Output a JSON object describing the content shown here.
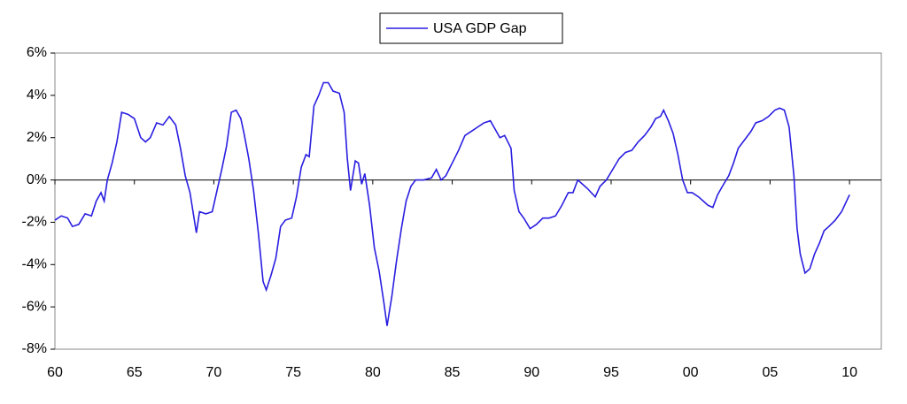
{
  "chart_data": {
    "type": "line",
    "legend_position": "top",
    "xlim": [
      1960,
      2012
    ],
    "ylim": [
      -8,
      6
    ],
    "xticks": [
      {
        "value": 1960,
        "label": "60"
      },
      {
        "value": 1965,
        "label": "65"
      },
      {
        "value": 1970,
        "label": "70"
      },
      {
        "value": 1975,
        "label": "75"
      },
      {
        "value": 1980,
        "label": "80"
      },
      {
        "value": 1985,
        "label": "85"
      },
      {
        "value": 1990,
        "label": "90"
      },
      {
        "value": 1995,
        "label": "95"
      },
      {
        "value": 2000,
        "label": "00"
      },
      {
        "value": 2005,
        "label": "05"
      },
      {
        "value": 2010,
        "label": "10"
      }
    ],
    "yticks": [
      {
        "value": 6,
        "label": "6%"
      },
      {
        "value": 4,
        "label": "4%"
      },
      {
        "value": 2,
        "label": "2%"
      },
      {
        "value": 0,
        "label": "0%"
      },
      {
        "value": -2,
        "label": "-2%"
      },
      {
        "value": -4,
        "label": "-4%"
      },
      {
        "value": -6,
        "label": "-6%"
      },
      {
        "value": -8,
        "label": "-8%"
      }
    ],
    "x": [
      1960.0,
      1960.4,
      1960.8,
      1961.1,
      1961.5,
      1961.9,
      1962.3,
      1962.6,
      1962.9,
      1963.1,
      1963.3,
      1963.6,
      1963.9,
      1964.2,
      1964.6,
      1965.0,
      1965.4,
      1965.7,
      1966.0,
      1966.4,
      1966.8,
      1967.2,
      1967.6,
      1967.9,
      1968.2,
      1968.5,
      1968.9,
      1969.1,
      1969.5,
      1969.9,
      1970.2,
      1970.5,
      1970.8,
      1971.1,
      1971.4,
      1971.7,
      1971.9,
      1972.2,
      1972.5,
      1972.8,
      1973.1,
      1973.3,
      1973.6,
      1973.9,
      1974.2,
      1974.5,
      1974.9,
      1975.2,
      1975.5,
      1975.8,
      1976.0,
      1976.3,
      1976.6,
      1976.9,
      1977.2,
      1977.5,
      1977.9,
      1978.2,
      1978.4,
      1978.6,
      1978.9,
      1979.1,
      1979.3,
      1979.5,
      1979.8,
      1980.1,
      1980.4,
      1980.7,
      1980.9,
      1981.2,
      1981.5,
      1981.8,
      1982.1,
      1982.4,
      1982.7,
      1983.2,
      1983.7,
      1984.0,
      1984.3,
      1984.6,
      1985.0,
      1985.4,
      1985.8,
      1986.2,
      1986.6,
      1987.0,
      1987.4,
      1987.7,
      1988.0,
      1988.3,
      1988.7,
      1988.9,
      1989.2,
      1989.5,
      1989.9,
      1990.3,
      1990.7,
      1991.1,
      1991.5,
      1991.9,
      1992.3,
      1992.6,
      1992.9,
      1993.2,
      1993.5,
      1994.0,
      1994.3,
      1994.7,
      1995.1,
      1995.5,
      1995.9,
      1996.3,
      1996.7,
      1997.1,
      1997.5,
      1997.8,
      1998.1,
      1998.3,
      1998.6,
      1998.9,
      1999.2,
      1999.5,
      1999.8,
      2000.1,
      2000.5,
      2000.8,
      2001.1,
      2001.4,
      2001.7,
      2002.0,
      2002.4,
      2002.7,
      2003.0,
      2003.4,
      2003.8,
      2004.1,
      2004.5,
      2004.9,
      2005.3,
      2005.6,
      2005.9,
      2006.2,
      2006.5,
      2006.7,
      2006.9,
      2007.2,
      2007.5,
      2007.8,
      2008.1,
      2008.4,
      2008.7,
      2009.1,
      2009.5,
      2010.0
    ],
    "series": [
      {
        "name": "USA GDP Gap",
        "color": "#2a1ee0",
        "values": [
          -1.9,
          -1.7,
          -1.8,
          -2.2,
          -2.1,
          -1.6,
          -1.7,
          -1.0,
          -0.6,
          -1.0,
          0.0,
          0.8,
          1.8,
          3.2,
          3.1,
          2.9,
          2.0,
          1.8,
          2.0,
          2.7,
          2.6,
          3.0,
          2.6,
          1.5,
          0.2,
          -0.6,
          -2.5,
          -1.5,
          -1.6,
          -1.5,
          -0.5,
          0.5,
          1.6,
          3.2,
          3.3,
          2.9,
          2.2,
          1.0,
          -0.5,
          -2.5,
          -4.8,
          -5.2,
          -4.5,
          -3.7,
          -2.2,
          -1.9,
          -1.8,
          -0.8,
          0.6,
          1.2,
          1.1,
          3.5,
          4.0,
          4.6,
          4.6,
          4.2,
          4.1,
          3.2,
          1.0,
          -0.5,
          0.9,
          0.8,
          -0.2,
          0.3,
          -1.2,
          -3.2,
          -4.3,
          -5.8,
          -6.9,
          -5.5,
          -3.8,
          -2.3,
          -1.0,
          -0.3,
          0.0,
          0.0,
          0.1,
          0.5,
          0.0,
          0.2,
          0.8,
          1.4,
          2.1,
          2.3,
          2.5,
          2.7,
          2.8,
          2.4,
          2.0,
          2.1,
          1.5,
          -0.5,
          -1.5,
          -1.8,
          -2.3,
          -2.1,
          -1.8,
          -1.8,
          -1.7,
          -1.2,
          -0.6,
          -0.6,
          0.0,
          -0.2,
          -0.4,
          -0.8,
          -0.3,
          0.0,
          0.5,
          1.0,
          1.3,
          1.4,
          1.8,
          2.1,
          2.5,
          2.9,
          3.0,
          3.3,
          2.8,
          2.2,
          1.2,
          0.0,
          -0.6,
          -0.6,
          -0.8,
          -1.0,
          -1.2,
          -1.3,
          -0.7,
          -0.3,
          0.2,
          0.8,
          1.5,
          1.9,
          2.3,
          2.7,
          2.8,
          3.0,
          3.3,
          3.4,
          3.3,
          2.5,
          0.2,
          -2.3,
          -3.5,
          -4.4,
          -4.2,
          -3.5,
          -3.0,
          -2.4,
          -2.2,
          -1.9,
          -1.5,
          -0.7
        ]
      }
    ]
  }
}
